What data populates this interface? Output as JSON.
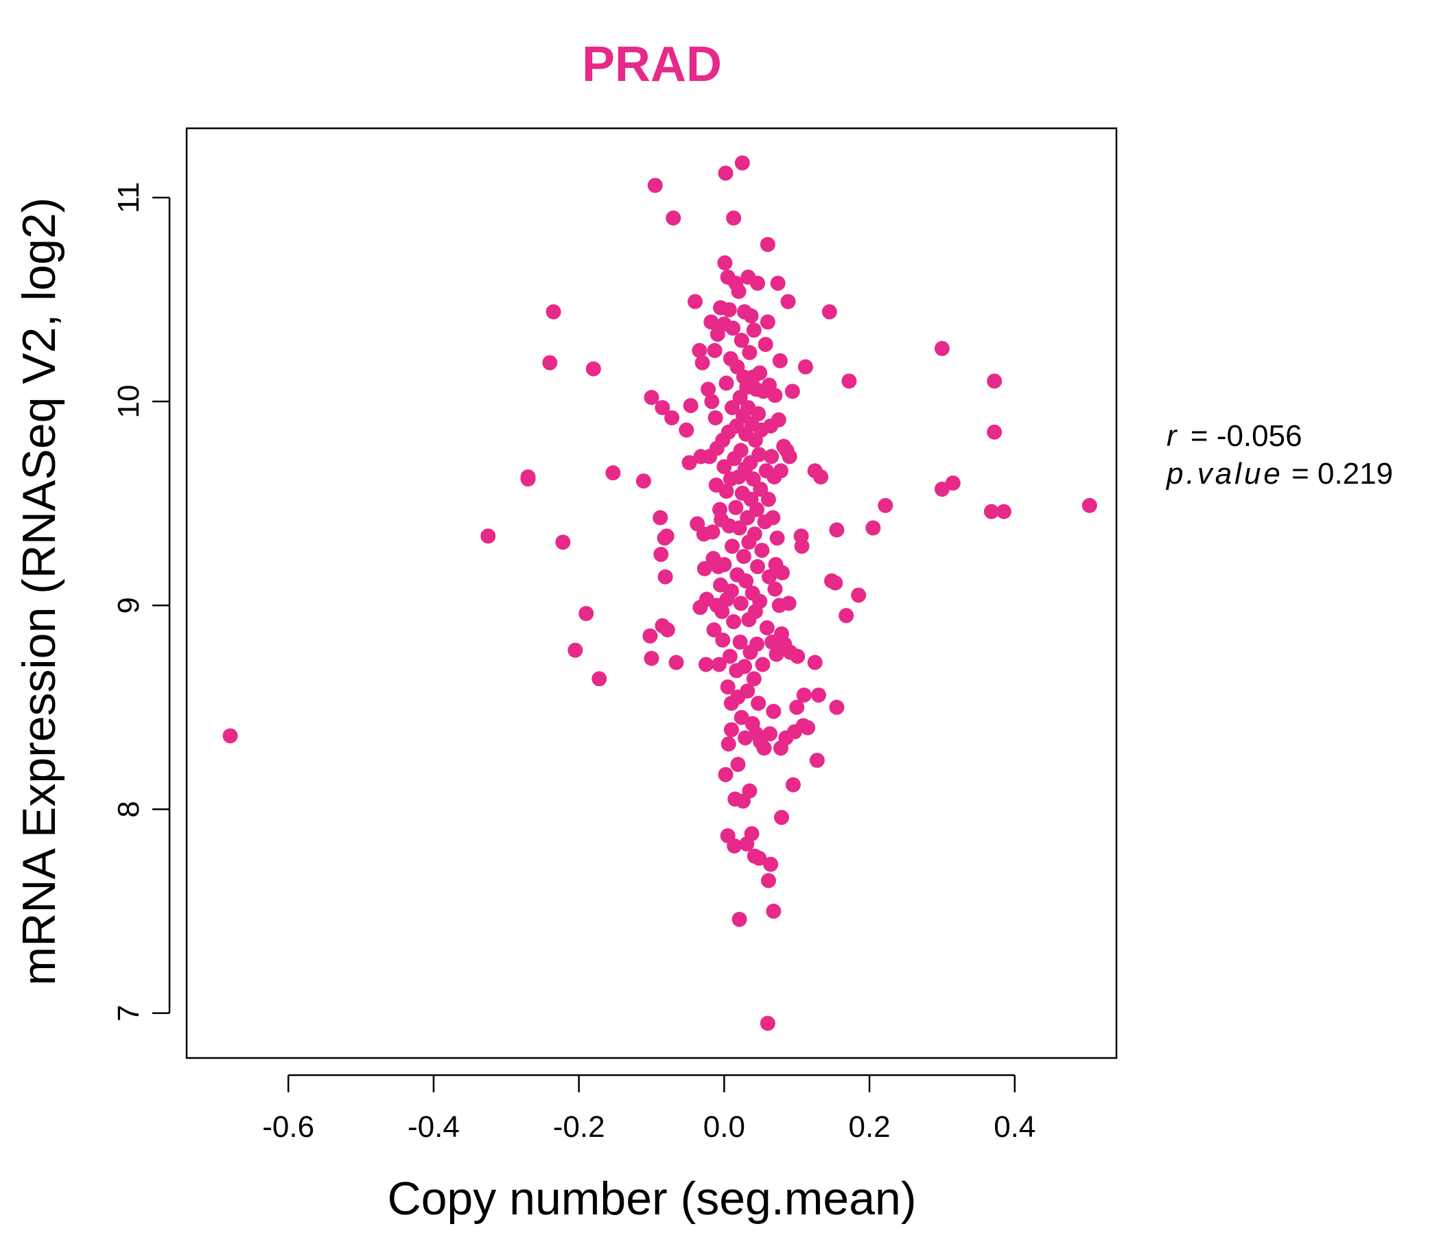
{
  "chart_data": {
    "type": "scatter",
    "title": "PRAD",
    "xlabel": "Copy number (seg.mean)",
    "ylabel": "mRNA Expression (RNASeq V2, log2)",
    "xlim": [
      -0.74,
      0.54
    ],
    "ylim": [
      6.78,
      11.34
    ],
    "xticks": [
      -0.6,
      -0.4,
      -0.2,
      0.0,
      0.2,
      0.4
    ],
    "xtick_labels": [
      "-0.6",
      "-0.4",
      "-0.2",
      "0.0",
      "0.2",
      "0.4"
    ],
    "yticks": [
      7,
      8,
      9,
      10,
      11
    ],
    "ytick_labels": [
      "7",
      "8",
      "9",
      "10",
      "11"
    ],
    "point_color": "#e7298a",
    "grid": false,
    "stats": {
      "r_label": "r",
      "r_value": "-0.056",
      "p_label": "p.value",
      "p_value": "0.219"
    },
    "series": [
      {
        "points": [
          [
            -0.68,
            8.36
          ],
          [
            -0.325,
            9.34
          ],
          [
            -0.27,
            9.63
          ],
          [
            -0.27,
            9.62
          ],
          [
            -0.24,
            10.19
          ],
          [
            -0.235,
            10.44
          ],
          [
            -0.222,
            9.31
          ],
          [
            -0.205,
            8.78
          ],
          [
            -0.19,
            8.96
          ],
          [
            -0.18,
            10.16
          ],
          [
            -0.172,
            8.64
          ],
          [
            -0.153,
            9.65
          ],
          [
            -0.111,
            9.61
          ],
          [
            -0.1,
            10.02
          ],
          [
            -0.1,
            8.74
          ],
          [
            -0.102,
            8.85
          ],
          [
            -0.095,
            11.06
          ],
          [
            -0.088,
            9.43
          ],
          [
            -0.087,
            9.25
          ],
          [
            -0.085,
            9.97
          ],
          [
            -0.085,
            8.9
          ],
          [
            -0.082,
            9.33
          ],
          [
            -0.081,
            9.14
          ],
          [
            -0.079,
            9.34
          ],
          [
            -0.078,
            8.88
          ],
          [
            -0.072,
            9.92
          ],
          [
            -0.07,
            10.9
          ],
          [
            -0.066,
            8.72
          ],
          [
            -0.052,
            9.86
          ],
          [
            -0.048,
            9.7
          ],
          [
            -0.046,
            9.98
          ],
          [
            -0.04,
            10.49
          ],
          [
            -0.037,
            9.4
          ],
          [
            -0.034,
            10.25
          ],
          [
            -0.032,
            9.73
          ],
          [
            -0.033,
            8.99
          ],
          [
            -0.03,
            10.19
          ],
          [
            -0.028,
            9.35
          ],
          [
            -0.027,
            9.18
          ],
          [
            -0.025,
            8.71
          ],
          [
            -0.024,
            9.03
          ],
          [
            -0.022,
            10.06
          ],
          [
            -0.02,
            9.73
          ],
          [
            -0.018,
            10.39
          ],
          [
            -0.017,
            10.0
          ],
          [
            -0.016,
            9.36
          ],
          [
            -0.015,
            9.23
          ],
          [
            -0.014,
            8.88
          ],
          [
            -0.013,
            10.25
          ],
          [
            -0.012,
            9.92
          ],
          [
            -0.011,
            9.59
          ],
          [
            -0.01,
            9.77
          ],
          [
            -0.01,
            9.0
          ],
          [
            -0.009,
            10.33
          ],
          [
            -0.008,
            9.19
          ],
          [
            -0.007,
            8.71
          ],
          [
            -0.006,
            9.47
          ],
          [
            -0.005,
            10.46
          ],
          [
            -0.005,
            9.1
          ],
          [
            -0.004,
            9.42
          ],
          [
            -0.003,
            8.97
          ],
          [
            -0.002,
            9.81
          ],
          [
            -0.002,
            8.83
          ],
          [
            0.0,
            10.38
          ],
          [
            0.0,
            9.68
          ],
          [
            0.0,
            9.2
          ],
          [
            0.001,
            10.68
          ],
          [
            0.002,
            11.12
          ],
          [
            0.002,
            8.17
          ],
          [
            0.003,
            10.09
          ],
          [
            0.003,
            9.56
          ],
          [
            0.004,
            9.03
          ],
          [
            0.005,
            10.61
          ],
          [
            0.005,
            8.6
          ],
          [
            0.005,
            7.87
          ],
          [
            0.006,
            9.85
          ],
          [
            0.006,
            8.32
          ],
          [
            0.007,
            10.45
          ],
          [
            0.007,
            9.39
          ],
          [
            0.008,
            8.75
          ],
          [
            0.009,
            10.21
          ],
          [
            0.009,
            9.62
          ],
          [
            0.01,
            9.07
          ],
          [
            0.01,
            8.52
          ],
          [
            0.01,
            8.39
          ],
          [
            0.011,
            9.97
          ],
          [
            0.011,
            9.29
          ],
          [
            0.012,
            10.36
          ],
          [
            0.013,
            10.9
          ],
          [
            0.013,
            8.92
          ],
          [
            0.014,
            9.72
          ],
          [
            0.014,
            7.82
          ],
          [
            0.015,
            8.05
          ],
          [
            0.016,
            10.58
          ],
          [
            0.016,
            9.48
          ],
          [
            0.017,
            9.88
          ],
          [
            0.017,
            8.68
          ],
          [
            0.018,
            10.17
          ],
          [
            0.018,
            9.15
          ],
          [
            0.019,
            8.55
          ],
          [
            0.019,
            8.22
          ],
          [
            0.02,
            10.54
          ],
          [
            0.02,
            9.63
          ],
          [
            0.021,
            9.38
          ],
          [
            0.021,
            7.46
          ],
          [
            0.022,
            10.02
          ],
          [
            0.022,
            8.82
          ],
          [
            0.023,
            9.76
          ],
          [
            0.023,
            9.01
          ],
          [
            0.024,
            10.3
          ],
          [
            0.024,
            8.45
          ],
          [
            0.025,
            11.17
          ],
          [
            0.025,
            9.55
          ],
          [
            0.026,
            9.93
          ],
          [
            0.026,
            8.04
          ],
          [
            0.027,
            10.12
          ],
          [
            0.027,
            9.24
          ],
          [
            0.028,
            10.44
          ],
          [
            0.028,
            8.7
          ],
          [
            0.029,
            9.67
          ],
          [
            0.029,
            8.35
          ],
          [
            0.03,
            9.84
          ],
          [
            0.03,
            9.12
          ],
          [
            0.031,
            10.07
          ],
          [
            0.031,
            7.83
          ],
          [
            0.032,
            9.43
          ],
          [
            0.032,
            8.58
          ],
          [
            0.033,
            10.61
          ],
          [
            0.033,
            9.97
          ],
          [
            0.034,
            9.31
          ],
          [
            0.034,
            8.93
          ],
          [
            0.035,
            10.24
          ],
          [
            0.035,
            8.09
          ],
          [
            0.036,
            9.7
          ],
          [
            0.036,
            8.77
          ],
          [
            0.037,
            10.42
          ],
          [
            0.037,
            9.52
          ],
          [
            0.038,
            9.89
          ],
          [
            0.038,
            7.88
          ],
          [
            0.039,
            9.06
          ],
          [
            0.039,
            8.42
          ],
          [
            0.04,
            10.12
          ],
          [
            0.04,
            9.62
          ],
          [
            0.041,
            10.35
          ],
          [
            0.041,
            8.64
          ],
          [
            0.042,
            9.35
          ],
          [
            0.042,
            7.77
          ],
          [
            0.043,
            9.81
          ],
          [
            0.043,
            8.97
          ],
          [
            0.044,
            10.06
          ],
          [
            0.044,
            8.37
          ],
          [
            0.045,
            9.47
          ],
          [
            0.045,
            8.81
          ],
          [
            0.046,
            10.58
          ],
          [
            0.046,
            9.19
          ],
          [
            0.047,
            9.94
          ],
          [
            0.047,
            8.52
          ],
          [
            0.048,
            9.74
          ],
          [
            0.048,
            7.76
          ],
          [
            0.049,
            10.14
          ],
          [
            0.049,
            9.02
          ],
          [
            0.05,
            9.57
          ],
          [
            0.05,
            8.33
          ],
          [
            0.051,
            9.86
          ],
          [
            0.052,
            9.27
          ],
          [
            0.053,
            8.71
          ],
          [
            0.054,
            10.05
          ],
          [
            0.055,
            8.3
          ],
          [
            0.056,
            9.41
          ],
          [
            0.057,
            10.28
          ],
          [
            0.058,
            9.66
          ],
          [
            0.059,
            8.89
          ],
          [
            0.06,
            10.77
          ],
          [
            0.06,
            10.39
          ],
          [
            0.06,
            6.95
          ],
          [
            0.061,
            9.52
          ],
          [
            0.061,
            7.65
          ],
          [
            0.062,
            9.14
          ],
          [
            0.062,
            10.08
          ],
          [
            0.063,
            8.37
          ],
          [
            0.064,
            9.88
          ],
          [
            0.064,
            7.73
          ],
          [
            0.065,
            9.73
          ],
          [
            0.066,
            8.82
          ],
          [
            0.067,
            9.43
          ],
          [
            0.068,
            8.48
          ],
          [
            0.068,
            7.5
          ],
          [
            0.069,
            9.63
          ],
          [
            0.07,
            9.08
          ],
          [
            0.07,
            10.03
          ],
          [
            0.071,
            9.2
          ],
          [
            0.072,
            8.76
          ],
          [
            0.073,
            9.33
          ],
          [
            0.074,
            10.58
          ],
          [
            0.075,
            9.91
          ],
          [
            0.076,
            9.0
          ],
          [
            0.077,
            10.2
          ],
          [
            0.078,
            9.66
          ],
          [
            0.078,
            8.3
          ],
          [
            0.079,
            8.86
          ],
          [
            0.079,
            7.96
          ],
          [
            0.08,
            9.16
          ],
          [
            0.082,
            9.78
          ],
          [
            0.083,
            8.81
          ],
          [
            0.085,
            8.35
          ],
          [
            0.086,
            9.76
          ],
          [
            0.088,
            10.49
          ],
          [
            0.089,
            9.01
          ],
          [
            0.09,
            9.73
          ],
          [
            0.091,
            8.77
          ],
          [
            0.094,
            10.05
          ],
          [
            0.095,
            8.12
          ],
          [
            0.097,
            8.38
          ],
          [
            0.1,
            8.5
          ],
          [
            0.101,
            8.75
          ],
          [
            0.106,
            9.34
          ],
          [
            0.107,
            9.29
          ],
          [
            0.109,
            8.41
          ],
          [
            0.11,
            8.56
          ],
          [
            0.112,
            10.17
          ],
          [
            0.115,
            8.4
          ],
          [
            0.125,
            9.66
          ],
          [
            0.125,
            8.72
          ],
          [
            0.128,
            8.24
          ],
          [
            0.13,
            8.56
          ],
          [
            0.133,
            9.63
          ],
          [
            0.145,
            10.44
          ],
          [
            0.148,
            9.12
          ],
          [
            0.153,
            9.11
          ],
          [
            0.155,
            9.37
          ],
          [
            0.155,
            8.5
          ],
          [
            0.168,
            8.95
          ],
          [
            0.172,
            10.1
          ],
          [
            0.185,
            9.05
          ],
          [
            0.205,
            9.38
          ],
          [
            0.222,
            9.49
          ],
          [
            0.3,
            10.26
          ],
          [
            0.3,
            9.57
          ],
          [
            0.315,
            9.6
          ],
          [
            0.368,
            9.46
          ],
          [
            0.372,
            10.1
          ],
          [
            0.372,
            9.85
          ],
          [
            0.385,
            9.46
          ],
          [
            0.503,
            9.49
          ]
        ]
      }
    ]
  }
}
